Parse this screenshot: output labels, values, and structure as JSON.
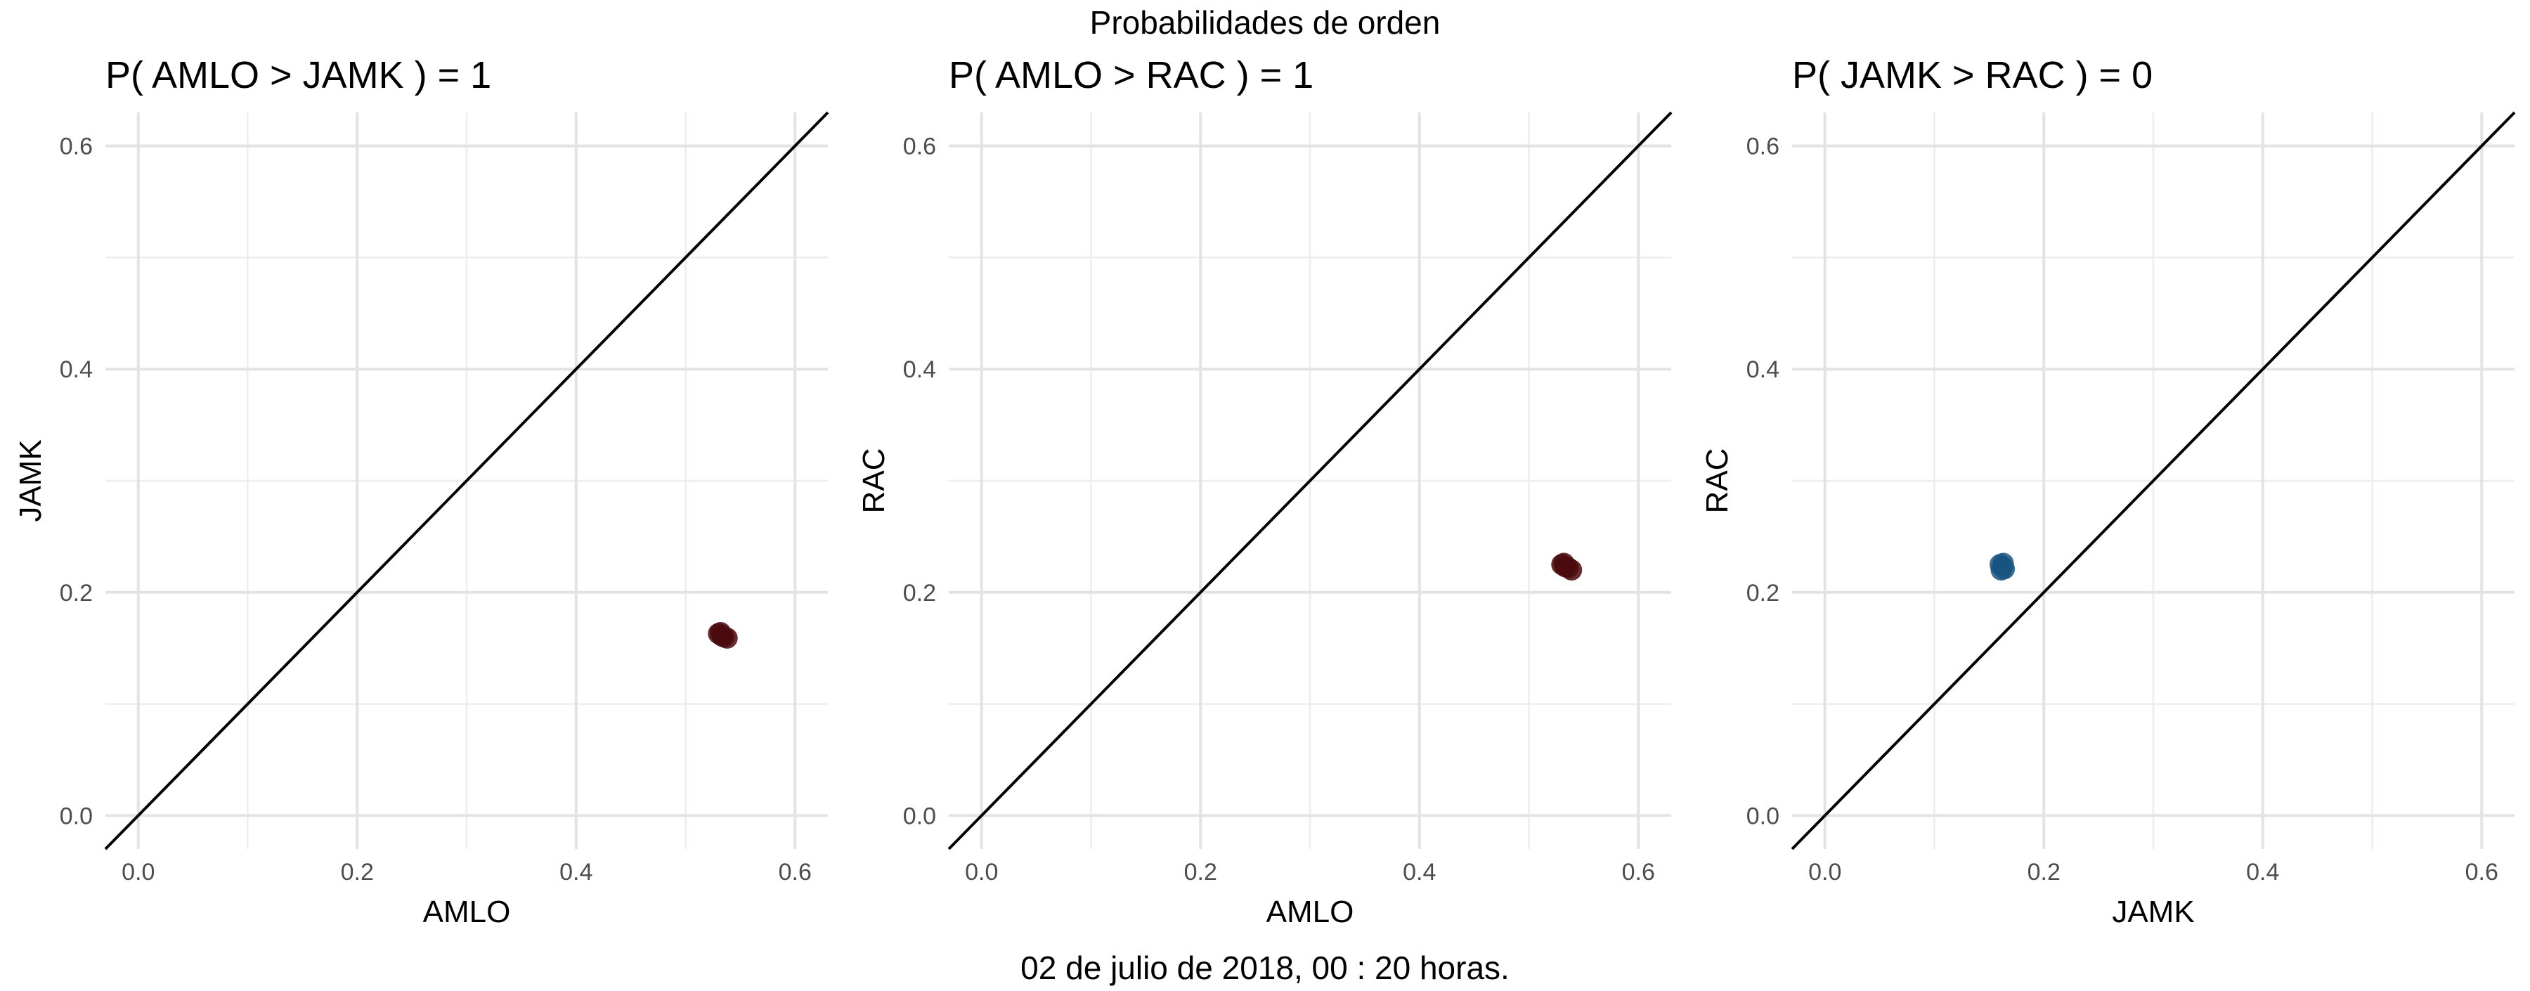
{
  "figure": {
    "title": "Probabilidades de orden",
    "caption": "02 de julio de 2018, 00 : 20 horas."
  },
  "chart_data": [
    {
      "type": "scatter",
      "title": "P( AMLO > JAMK ) = 1",
      "xlabel": "AMLO",
      "ylabel": "JAMK",
      "xlim": [
        -0.03,
        0.63
      ],
      "ylim": [
        -0.03,
        0.63
      ],
      "xticks": [
        "0.0",
        "0.2",
        "0.4",
        "0.6"
      ],
      "yticks": [
        "0.0",
        "0.2",
        "0.4",
        "0.6"
      ],
      "grid": true,
      "reference_line": "y = x",
      "point_color": "#4a0a0e",
      "points": [
        {
          "x": 0.53,
          "y": 0.163
        },
        {
          "x": 0.533,
          "y": 0.161
        },
        {
          "x": 0.535,
          "y": 0.16
        },
        {
          "x": 0.538,
          "y": 0.159
        },
        {
          "x": 0.532,
          "y": 0.164
        }
      ]
    },
    {
      "type": "scatter",
      "title": "P( AMLO > RAC ) = 1",
      "xlabel": "AMLO",
      "ylabel": "RAC",
      "xlim": [
        -0.03,
        0.63
      ],
      "ylim": [
        -0.03,
        0.63
      ],
      "xticks": [
        "0.0",
        "0.2",
        "0.4",
        "0.6"
      ],
      "yticks": [
        "0.0",
        "0.2",
        "0.4",
        "0.6"
      ],
      "grid": true,
      "reference_line": "y = x",
      "point_color": "#4a0a0e",
      "points": [
        {
          "x": 0.53,
          "y": 0.225
        },
        {
          "x": 0.533,
          "y": 0.223
        },
        {
          "x": 0.536,
          "y": 0.222
        },
        {
          "x": 0.539,
          "y": 0.22
        },
        {
          "x": 0.532,
          "y": 0.226
        }
      ]
    },
    {
      "type": "scatter",
      "title": "P( JAMK > RAC ) = 0",
      "xlabel": "JAMK",
      "ylabel": "RAC",
      "xlim": [
        -0.03,
        0.63
      ],
      "ylim": [
        -0.03,
        0.63
      ],
      "xticks": [
        "0.0",
        "0.2",
        "0.4",
        "0.6"
      ],
      "yticks": [
        "0.0",
        "0.2",
        "0.4",
        "0.6"
      ],
      "grid": true,
      "reference_line": "y = x",
      "point_color": "#1a5480",
      "points": [
        {
          "x": 0.16,
          "y": 0.225
        },
        {
          "x": 0.162,
          "y": 0.223
        },
        {
          "x": 0.164,
          "y": 0.221
        },
        {
          "x": 0.161,
          "y": 0.22
        },
        {
          "x": 0.163,
          "y": 0.226
        }
      ]
    }
  ]
}
